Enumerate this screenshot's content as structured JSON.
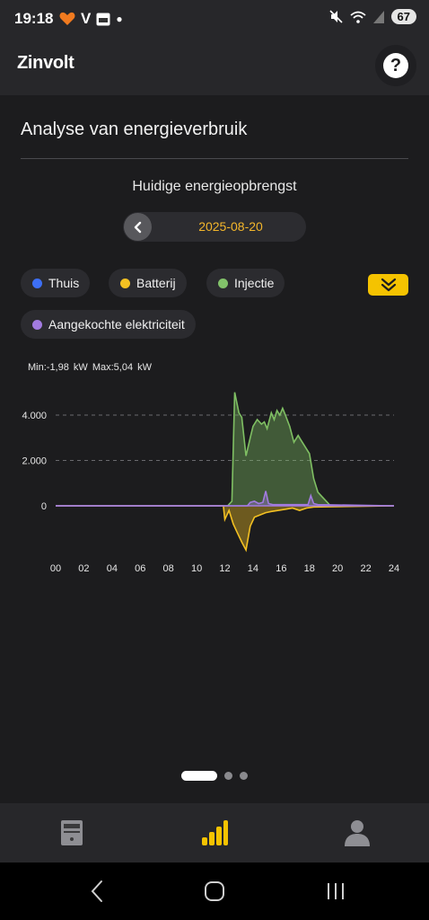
{
  "status": {
    "time": "19:18",
    "battery": "67",
    "left_icons": [
      "heart-icon",
      "v-app-icon",
      "calendar-icon",
      "dot-icon"
    ],
    "right_icons": [
      "mute-icon",
      "wifi-icon",
      "signal-icon"
    ]
  },
  "app": {
    "title": "Zinvolt",
    "help_label": "?"
  },
  "page": {
    "heading": "Analyse van energieverbruik",
    "subheading": "Huidige energieopbrengst",
    "date": "2025-08-20"
  },
  "legend": [
    {
      "label": "Thuis",
      "color": "#3d6ff5"
    },
    {
      "label": "Batterij",
      "color": "#f3c022"
    },
    {
      "label": "Injectie",
      "color": "#82c26a"
    },
    {
      "label": "Aangekochte elektriciteit",
      "color": "#a27be0"
    }
  ],
  "minmax": "Min:-1,98 kW  Max:5,04 kW",
  "chart_data": {
    "type": "area",
    "ylim": [
      -2000,
      5200
    ],
    "y_ticks": [
      "4.000",
      "2.000",
      "0"
    ],
    "y_tick_values": [
      4000,
      2000,
      0
    ],
    "x_ticks": [
      "00",
      "02",
      "04",
      "06",
      "08",
      "10",
      "12",
      "14",
      "16",
      "18",
      "20",
      "24"
    ],
    "x_tick_values": [
      0,
      2,
      4,
      6,
      8,
      10,
      12,
      14,
      16,
      18,
      20,
      24
    ],
    "extra_x_tick": {
      "label": "22",
      "value": 22
    },
    "series": [
      {
        "name": "Injectie",
        "color": "#7fbf63",
        "points": [
          [
            0,
            0
          ],
          [
            12.2,
            0
          ],
          [
            12.5,
            200
          ],
          [
            12.7,
            5000
          ],
          [
            13.0,
            4100
          ],
          [
            13.2,
            3900
          ],
          [
            13.5,
            2200
          ],
          [
            13.8,
            3000
          ],
          [
            14.0,
            3500
          ],
          [
            14.3,
            3800
          ],
          [
            14.6,
            3600
          ],
          [
            14.8,
            3700
          ],
          [
            15.0,
            3400
          ],
          [
            15.3,
            4100
          ],
          [
            15.5,
            3800
          ],
          [
            15.7,
            4200
          ],
          [
            15.9,
            4000
          ],
          [
            16.1,
            4300
          ],
          [
            16.3,
            4000
          ],
          [
            16.6,
            3500
          ],
          [
            16.9,
            2800
          ],
          [
            17.2,
            3100
          ],
          [
            17.4,
            2900
          ],
          [
            17.7,
            2600
          ],
          [
            18.0,
            2300
          ],
          [
            18.3,
            1200
          ],
          [
            18.6,
            600
          ],
          [
            18.9,
            400
          ],
          [
            19.2,
            200
          ],
          [
            19.5,
            0
          ],
          [
            24,
            0
          ]
        ]
      },
      {
        "name": "Batterij",
        "color": "#f3c022",
        "points": [
          [
            0,
            0
          ],
          [
            11.9,
            0
          ],
          [
            12.0,
            -600
          ],
          [
            12.3,
            -200
          ],
          [
            12.6,
            -800
          ],
          [
            12.9,
            -1200
          ],
          [
            13.2,
            -1600
          ],
          [
            13.5,
            -1950
          ],
          [
            13.8,
            -900
          ],
          [
            14.1,
            -500
          ],
          [
            14.5,
            -400
          ],
          [
            14.9,
            -300
          ],
          [
            15.3,
            -250
          ],
          [
            15.8,
            -200
          ],
          [
            16.3,
            -150
          ],
          [
            16.8,
            -100
          ],
          [
            17.3,
            -200
          ],
          [
            17.8,
            -100
          ],
          [
            18.3,
            -50
          ],
          [
            24,
            0
          ]
        ]
      },
      {
        "name": "Aangekochte elektriciteit",
        "color": "#a27be0",
        "points": [
          [
            0,
            0
          ],
          [
            13.6,
            0
          ],
          [
            13.8,
            150
          ],
          [
            14.1,
            200
          ],
          [
            14.4,
            100
          ],
          [
            14.7,
            150
          ],
          [
            14.9,
            650
          ],
          [
            15.1,
            100
          ],
          [
            15.4,
            50
          ],
          [
            17.9,
            50
          ],
          [
            18.1,
            450
          ],
          [
            18.3,
            100
          ],
          [
            18.6,
            50
          ],
          [
            24,
            0
          ]
        ]
      }
    ]
  },
  "nav": {
    "items": [
      {
        "name": "dashboard",
        "icon": "meter-icon",
        "active": false
      },
      {
        "name": "analyse",
        "icon": "bar-chart-icon",
        "active": true
      },
      {
        "name": "profile",
        "icon": "user-icon",
        "active": false
      }
    ],
    "accent": "#f5c300"
  }
}
